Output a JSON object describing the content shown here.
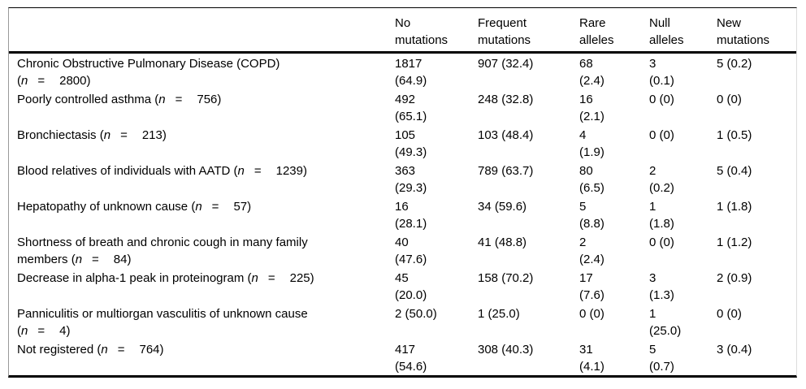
{
  "table": {
    "title_semantic": "distribution-of-mutation-types-by-patient-group",
    "border_color": "#000000",
    "n_symbol": "n",
    "equals": "=",
    "open_paren": "(",
    "close_paren": ")",
    "columns": [
      {
        "label": ""
      },
      {
        "label": "No\nmutations"
      },
      {
        "label": "Frequent\nmutations"
      },
      {
        "label": "Rare\nalleles"
      },
      {
        "label": "Null\nalleles"
      },
      {
        "label": "New\nmutations"
      }
    ],
    "rows": [
      {
        "label_pre": "Chronic Obstructive Pulmonary Disease (COPD)\n",
        "n_value": "2800",
        "cells": [
          "1817\n(64.9)",
          "907 (32.4)",
          "68\n(2.4)",
          "3\n(0.1)",
          "5 (0.2)"
        ]
      },
      {
        "label_pre": "Poorly controlled asthma ",
        "n_value": "756",
        "cells": [
          "492\n(65.1)",
          "248 (32.8)",
          "16\n(2.1)",
          "0 (0)",
          "0 (0)"
        ]
      },
      {
        "label_pre": "Bronchiectasis ",
        "n_value": "213",
        "cells": [
          "105\n(49.3)",
          "103 (48.4)",
          "4\n(1.9)",
          "0 (0)",
          "1 (0.5)"
        ]
      },
      {
        "label_pre": "Blood relatives of individuals with AATD ",
        "n_value": "1239",
        "cells": [
          "363\n(29.3)",
          "789 (63.7)",
          "80\n(6.5)",
          "2\n(0.2)",
          "5 (0.4)"
        ]
      },
      {
        "label_pre": "Hepatopathy of unknown cause ",
        "n_value": "57",
        "cells": [
          "16\n(28.1)",
          "34 (59.6)",
          "5\n(8.8)",
          "1\n(1.8)",
          "1 (1.8)"
        ]
      },
      {
        "label_pre": "Shortness of breath and chronic cough in many family\nmembers ",
        "n_value": "84",
        "cells": [
          "40\n(47.6)",
          "41 (48.8)",
          "2\n(2.4)",
          "0 (0)",
          "1 (1.2)"
        ]
      },
      {
        "label_pre": "Decrease in alpha-1 peak in proteinogram ",
        "n_value": "225",
        "cells": [
          "45\n(20.0)",
          "158 (70.2)",
          "17\n(7.6)",
          "3\n(1.3)",
          "2 (0.9)"
        ]
      },
      {
        "label_pre": "Panniculitis or multiorgan vasculitis of unknown cause\n",
        "n_value": "4",
        "cells": [
          "2 (50.0)",
          "1 (25.0)",
          "0 (0)",
          "1\n(25.0)",
          "0 (0)"
        ]
      },
      {
        "label_pre": "Not registered ",
        "n_value": "764",
        "cells": [
          "417\n(54.6)",
          "308 (40.3)",
          "31\n(4.1)",
          "5\n(0.7)",
          "3 (0.4)"
        ]
      }
    ]
  }
}
